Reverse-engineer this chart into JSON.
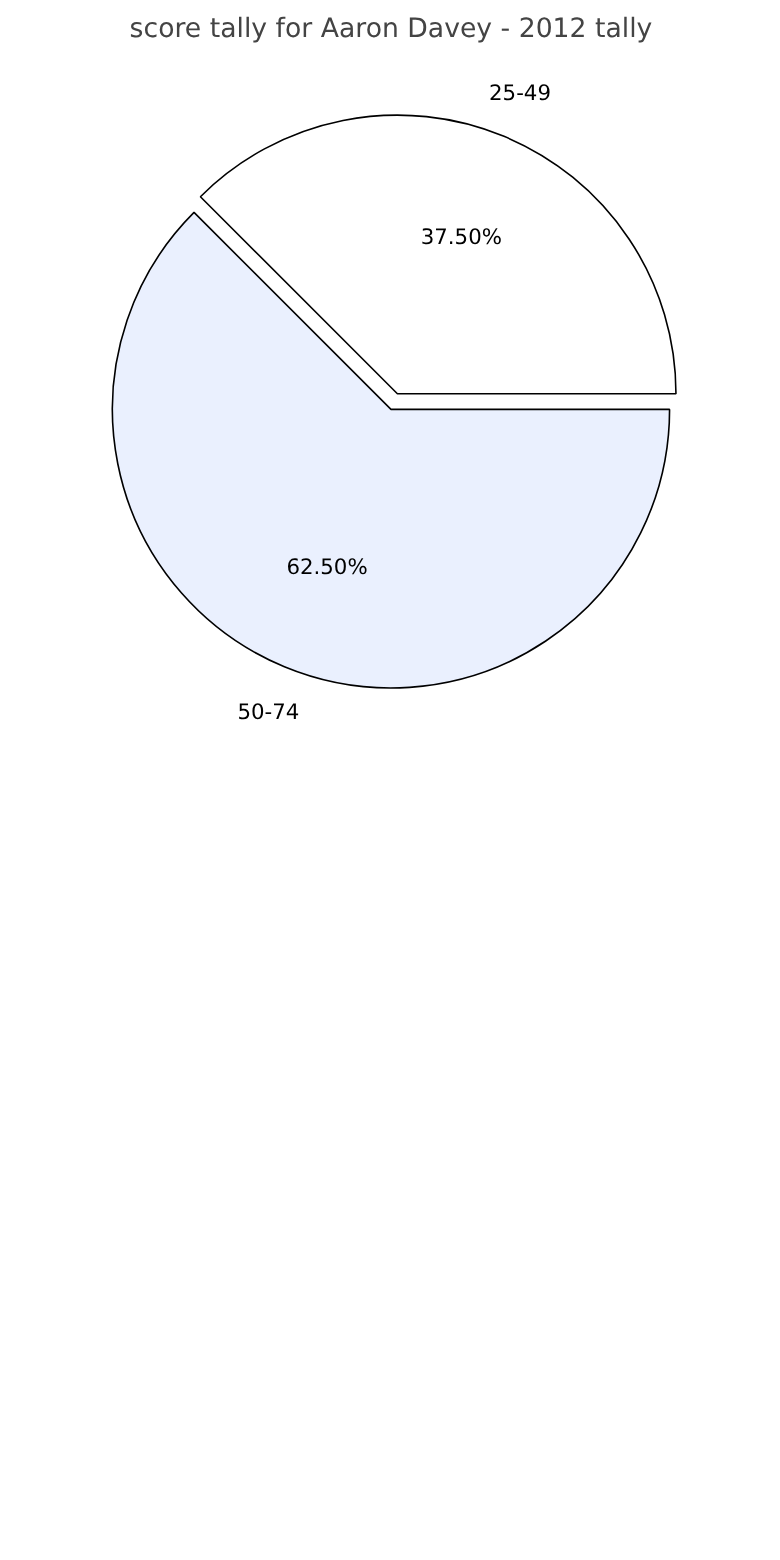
{
  "chart_data": {
    "type": "pie",
    "title": "score tally for Aaron Davey - 2012 tally",
    "categories": [
      "25-49",
      "50-74"
    ],
    "values": [
      37.5,
      62.5
    ],
    "colors": [
      "#ffffff",
      "#eaf0fe"
    ],
    "value_labels": [
      "37.50%",
      "62.50%"
    ]
  }
}
